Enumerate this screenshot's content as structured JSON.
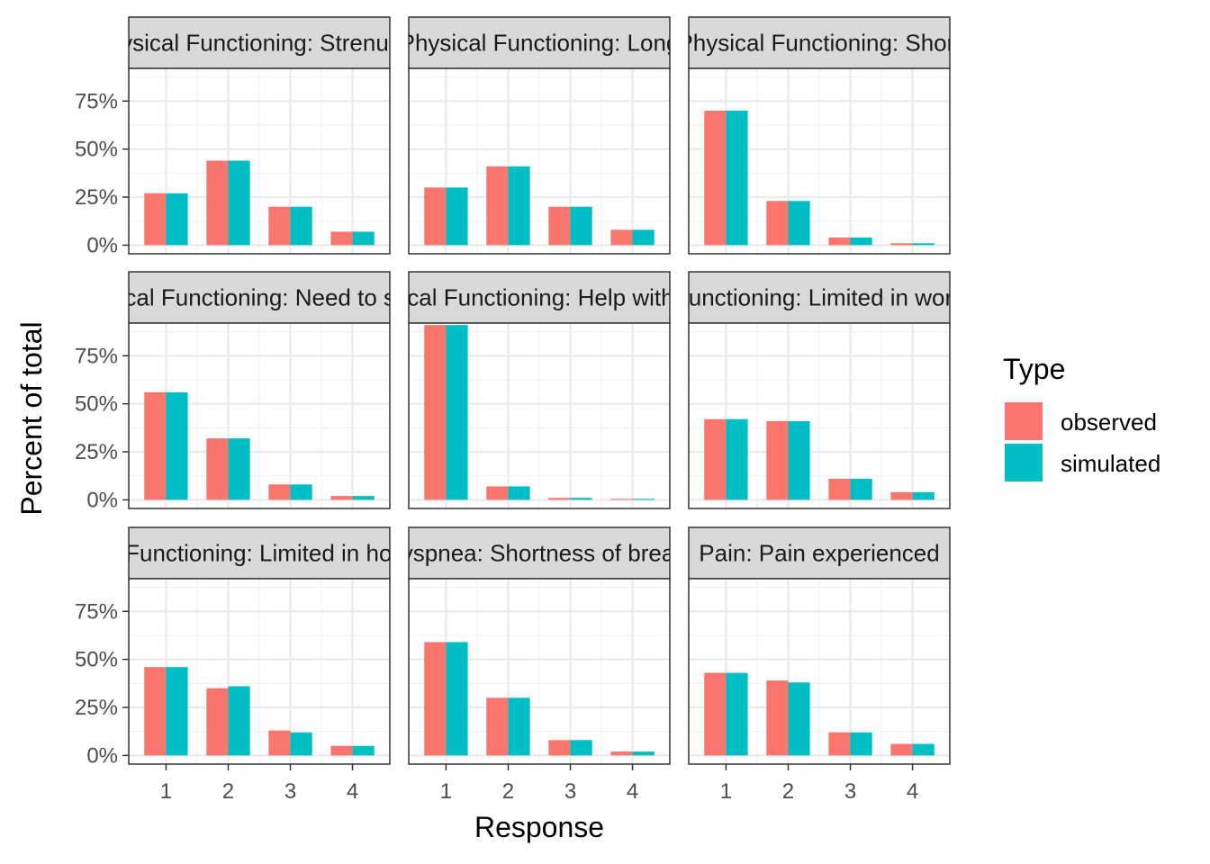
{
  "chart_data": {
    "type": "bar",
    "layout": "faceted 3x3 grouped bars",
    "xlabel": "Response",
    "ylabel": "Percent of total",
    "categories": [
      "1",
      "2",
      "3",
      "4"
    ],
    "y_ticks": [
      "0%",
      "25%",
      "50%",
      "75%"
    ],
    "ylim": [
      0,
      0.95
    ],
    "grid": true,
    "legend": {
      "title": "Type",
      "position": "right",
      "entries": [
        {
          "name": "observed",
          "color": "#F8766D"
        },
        {
          "name": "simulated",
          "color": "#00BFC4"
        }
      ]
    },
    "panels": [
      {
        "strip": "Physical Functioning: Strenuous",
        "observed": [
          0.27,
          0.44,
          0.2,
          0.07
        ],
        "simulated": [
          0.27,
          0.44,
          0.2,
          0.07
        ]
      },
      {
        "strip": "Physical Functioning: Long",
        "observed": [
          0.3,
          0.41,
          0.2,
          0.08
        ],
        "simulated": [
          0.3,
          0.41,
          0.2,
          0.08
        ]
      },
      {
        "strip": "Physical Functioning: Short",
        "observed": [
          0.7,
          0.23,
          0.04,
          0.01
        ],
        "simulated": [
          0.7,
          0.23,
          0.04,
          0.01
        ]
      },
      {
        "strip": "Physical Functioning: Need to stay in",
        "observed": [
          0.56,
          0.32,
          0.08,
          0.02
        ],
        "simulated": [
          0.56,
          0.32,
          0.08,
          0.02
        ]
      },
      {
        "strip": "Physical Functioning: Help with daily",
        "observed": [
          0.91,
          0.07,
          0.01,
          0.005
        ],
        "simulated": [
          0.91,
          0.07,
          0.01,
          0.005
        ]
      },
      {
        "strip": "Role Functioning: Limited in work/daily",
        "observed": [
          0.42,
          0.41,
          0.11,
          0.04
        ],
        "simulated": [
          0.42,
          0.41,
          0.11,
          0.04
        ]
      },
      {
        "strip": "Role Functioning: Limited in hobbies",
        "observed": [
          0.46,
          0.35,
          0.13,
          0.05
        ],
        "simulated": [
          0.46,
          0.36,
          0.12,
          0.05
        ]
      },
      {
        "strip": "Dyspnea: Shortness of breath",
        "observed": [
          0.59,
          0.3,
          0.08,
          0.02
        ],
        "simulated": [
          0.59,
          0.3,
          0.08,
          0.02
        ]
      },
      {
        "strip": "Pain: Pain experienced",
        "observed": [
          0.43,
          0.39,
          0.12,
          0.06
        ],
        "simulated": [
          0.43,
          0.38,
          0.12,
          0.06
        ]
      }
    ]
  }
}
